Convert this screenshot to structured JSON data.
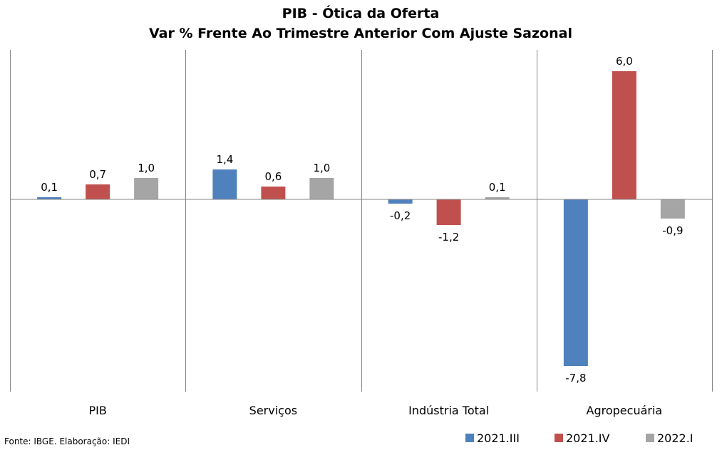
{
  "chart_data": {
    "type": "bar",
    "title": "PIB - Ótica da Oferta",
    "subtitle": "Var % Frente Ao Trimestre Anterior Com Ajuste Sazonal",
    "categories": [
      "PIB",
      "Serviços",
      "Indústria Total",
      "Agropecuária"
    ],
    "series": [
      {
        "name": "2021.III",
        "color": "#4F81BD",
        "values": [
          0.1,
          1.4,
          -0.2,
          -7.8
        ],
        "labels": [
          "0,1",
          "1,4",
          "-0,2",
          "-7,8"
        ]
      },
      {
        "name": "2021.IV",
        "color": "#C0504D",
        "values": [
          0.7,
          0.6,
          -1.2,
          6.0
        ],
        "labels": [
          "0,7",
          "0,6",
          "-1,2",
          "6,0"
        ]
      },
      {
        "name": "2022.I",
        "color": "#A5A5A5",
        "values": [
          1.0,
          1.0,
          0.1,
          -0.9
        ],
        "labels": [
          "1,0",
          "1,0",
          "0,1",
          "-0,9"
        ]
      }
    ],
    "ylim": [
      -9.0,
      7.0
    ],
    "gridlines": false,
    "legend_position": "bottom-right"
  },
  "source_note": "Fonte: IBGE. Elaboração: IEDI"
}
